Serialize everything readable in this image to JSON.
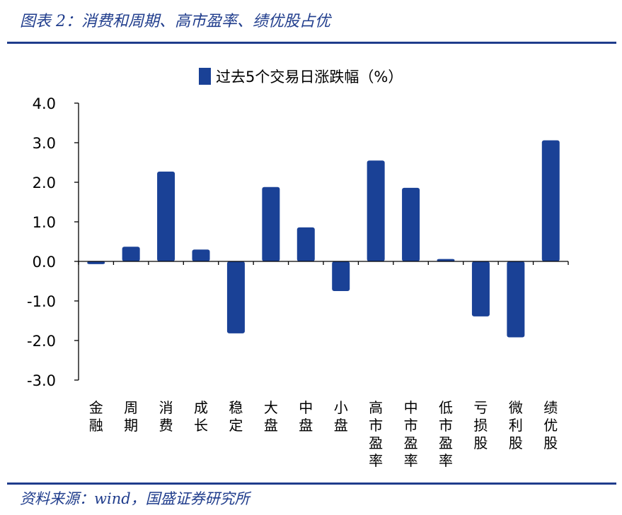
{
  "figure_title": "图表 2：消费和周期、高市盈率、绩优股占优",
  "source": "资料来源：wind，国盛证券研究所",
  "colors": {
    "bar": "#1a4196",
    "rule": "#1f3c8c",
    "axis": "#000000"
  },
  "chart_data": {
    "type": "bar",
    "categories": [
      "金融",
      "周期",
      "消费",
      "成长",
      "稳定",
      "大盘",
      "中盘",
      "小盘",
      "高市盈率",
      "中市盈率",
      "低市盈率",
      "亏损股",
      "微利股",
      "绩优股"
    ],
    "series": [
      {
        "name": "过去5个交易日涨跌幅（%）",
        "values": [
          -0.07,
          0.37,
          2.27,
          0.3,
          -1.82,
          1.88,
          0.86,
          -0.75,
          2.55,
          1.86,
          0.06,
          -1.39,
          -1.92,
          3.06
        ]
      }
    ],
    "ylim": [
      -3.0,
      4.0
    ],
    "yticks": [
      "4.0",
      "3.0",
      "2.0",
      "1.0",
      "0.0",
      "-1.0",
      "-2.0",
      "-3.0"
    ],
    "legend_position": "top-center",
    "grid": false
  }
}
